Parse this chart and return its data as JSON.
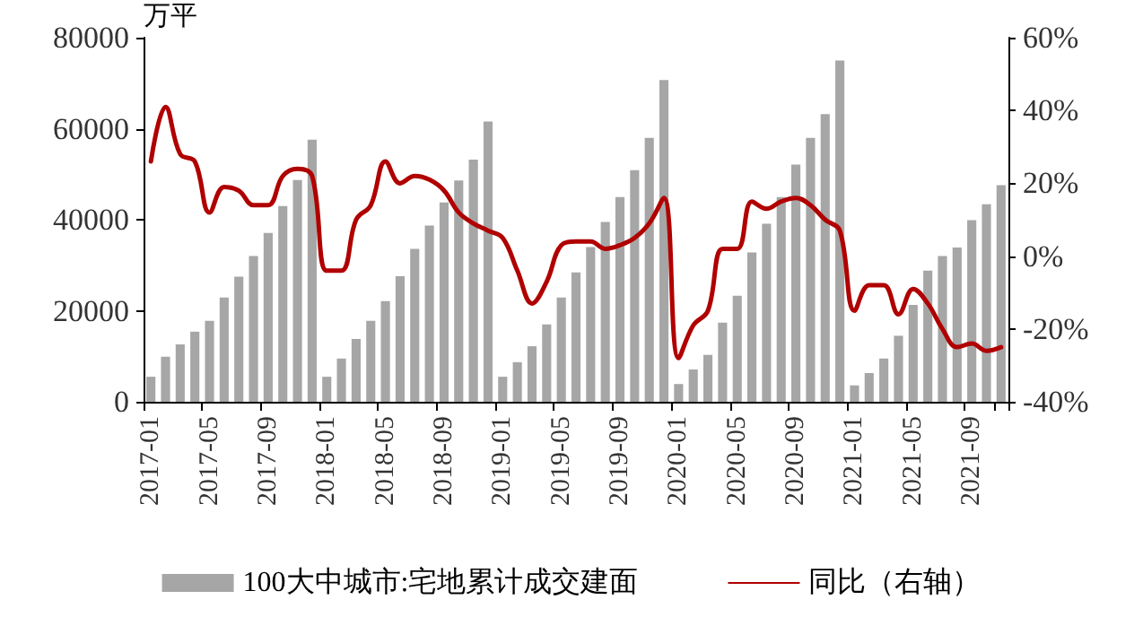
{
  "chart_data": {
    "type": "bar",
    "ylabel": "万平",
    "categories": [
      "2017-01",
      null,
      null,
      null,
      "2017-05",
      null,
      null,
      null,
      "2017-09",
      null,
      null,
      null,
      "2018-01",
      null,
      null,
      null,
      "2018-05",
      null,
      null,
      null,
      "2018-09",
      null,
      null,
      null,
      "2019-01",
      null,
      null,
      null,
      "2019-05",
      null,
      null,
      null,
      "2019-09",
      null,
      null,
      null,
      "2020-01",
      null,
      null,
      null,
      "2020-05",
      null,
      null,
      null,
      "2020-09",
      null,
      null,
      null,
      "2021-01",
      null,
      null,
      null,
      "2021-05",
      null,
      null,
      null,
      "2021-09",
      null,
      null
    ],
    "series": [
      {
        "name": "100大中城市:宅地累计成交建面",
        "color": "#a6a6a6",
        "values": [
          5500,
          9900,
          12600,
          15400,
          17800,
          22900,
          27500,
          32000,
          37100,
          43000,
          48700,
          57600,
          5500,
          9500,
          13800,
          17800,
          22100,
          27600,
          33600,
          38700,
          43800,
          48600,
          53200,
          61600,
          5500,
          8700,
          12200,
          17000,
          22900,
          28400,
          34000,
          39500,
          45000,
          50900,
          58000,
          70700,
          3900,
          7100,
          10300,
          17400,
          23300,
          32800,
          39100,
          45000,
          52100,
          58000,
          63200,
          75000,
          3600,
          6300,
          9500,
          14500,
          21300,
          28800,
          32000,
          33900,
          39900,
          43400,
          47600
        ]
      },
      {
        "name": "同比（右轴）",
        "type": "line",
        "axis": "y2",
        "color": "#b00000",
        "values": [
          26,
          41,
          28,
          26,
          12,
          19,
          18,
          14,
          14,
          22,
          24,
          22,
          -4,
          -4,
          10,
          14,
          26,
          20,
          22,
          21,
          18,
          12,
          9,
          7,
          5,
          -4,
          -13,
          -7,
          3,
          4,
          4,
          2,
          3,
          5,
          9,
          16,
          -28,
          -19,
          -15,
          2,
          2,
          15,
          13,
          15,
          16,
          14,
          10,
          7,
          -15,
          -8,
          -8,
          -16,
          -9,
          -13,
          -20,
          -25,
          -24,
          -26,
          -25
        ]
      }
    ],
    "ylim": [
      0,
      80000
    ],
    "yticks": [
      0,
      20000,
      40000,
      60000,
      80000
    ],
    "y2lim": [
      -40,
      60
    ],
    "y2ticks": [
      {
        "value": -40,
        "label": "-40%"
      },
      {
        "value": -20,
        "label": "-20%"
      },
      {
        "value": 0,
        "label": "0%"
      },
      {
        "value": 20,
        "label": "20%"
      },
      {
        "value": 40,
        "label": "40%"
      },
      {
        "value": 60,
        "label": "60%"
      }
    ],
    "grid": false,
    "legend": "bottom",
    "marker": "none",
    "line_style": "solid"
  }
}
